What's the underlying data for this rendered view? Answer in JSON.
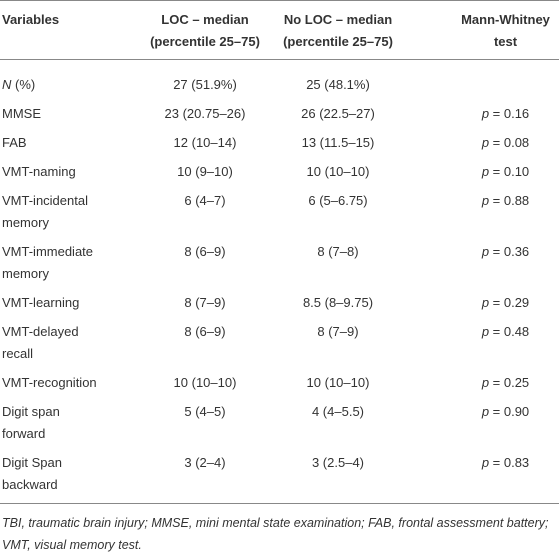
{
  "table": {
    "header": [
      [
        "Variables"
      ],
      [
        "LOC – median",
        "(percentile 25–75)"
      ],
      [
        "No LOC – median",
        "(percentile 25–75)"
      ],
      [
        "Mann-Whitney",
        "test"
      ]
    ],
    "rows": [
      [
        {
          "italic": "N",
          "text": " (%)"
        },
        "27 (51.9%)",
        "25 (48.1%)",
        ""
      ],
      [
        [
          "MMSE"
        ],
        "23 (20.75–26)",
        "26 (22.5–27)",
        {
          "italic": "p",
          "text": " = 0.16"
        }
      ],
      [
        [
          "FAB"
        ],
        "12 (10–14)",
        "13 (11.5–15)",
        {
          "italic": "p",
          "text": " = 0.08"
        }
      ],
      [
        [
          "VMT-naming"
        ],
        "10 (9–10)",
        "10 (10–10)",
        {
          "italic": "p",
          "text": " = 0.10"
        }
      ],
      [
        [
          "VMT-incidental",
          "memory"
        ],
        "6 (4–7)",
        "6 (5–6.75)",
        {
          "italic": "p",
          "text": " = 0.88"
        }
      ],
      [
        [
          "VMT-immediate",
          "memory"
        ],
        "8 (6–9)",
        "8 (7–8)",
        {
          "italic": "p",
          "text": " = 0.36"
        }
      ],
      [
        [
          "VMT-learning"
        ],
        "8 (7–9)",
        "8.5 (8–9.75)",
        {
          "italic": "p",
          "text": " = 0.29"
        }
      ],
      [
        [
          "VMT-delayed",
          "recall"
        ],
        "8 (6–9)",
        "8 (7–9)",
        {
          "italic": "p",
          "text": " = 0.48"
        }
      ],
      [
        [
          "VMT-recognition"
        ],
        "10 (10–10)",
        "10 (10–10)",
        {
          "italic": "p",
          "text": " = 0.25"
        }
      ],
      [
        [
          "Digit span",
          "forward"
        ],
        "5 (4–5)",
        "4 (4–5.5)",
        {
          "italic": "p",
          "text": " = 0.90"
        }
      ],
      [
        [
          "Digit Span",
          "backward"
        ],
        "3 (2–4)",
        "3 (2.5–4)",
        {
          "italic": "p",
          "text": " = 0.83"
        }
      ]
    ]
  },
  "footnote": "TBI, traumatic brain injury; MMSE, mini mental state examination; FAB, frontal assessment battery; VMT, visual memory test."
}
